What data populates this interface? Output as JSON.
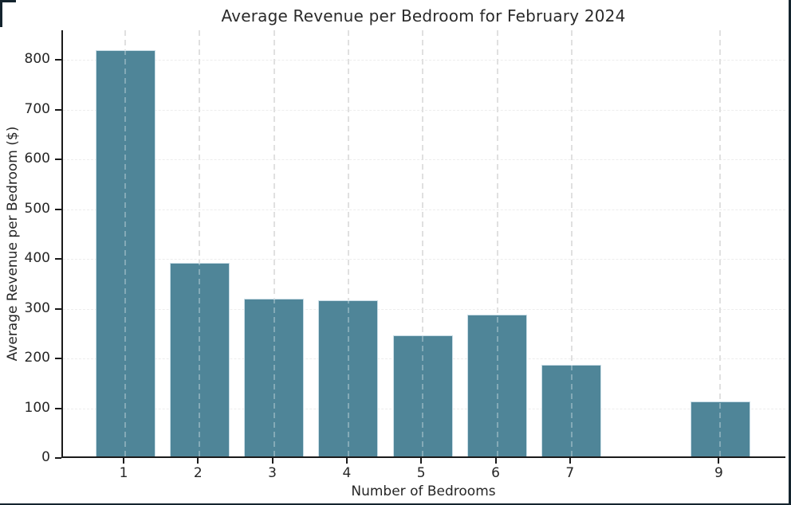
{
  "figure": {
    "background": "#ffffff",
    "border_color": "#14242e"
  },
  "chart_data": {
    "type": "bar",
    "title": "Average Revenue per Bedroom for February 2024",
    "xlabel": "Number of Bedrooms",
    "ylabel": "Average Revenue per Bedroom ($)",
    "categories": [
      "1",
      "2",
      "3",
      "4",
      "5",
      "6",
      "7",
      "9"
    ],
    "x_positions": [
      1,
      2,
      3,
      4,
      5,
      6,
      7,
      9
    ],
    "values": [
      817,
      389,
      317,
      314,
      244,
      285,
      184,
      110
    ],
    "yticks": [
      0,
      100,
      200,
      300,
      400,
      500,
      600,
      700,
      800
    ],
    "ylim": [
      0,
      860
    ],
    "xlim": [
      0.16,
      9.9
    ],
    "bar_color": "#4f8598",
    "bar_edge_color": "#c9dde6",
    "grid": {
      "vertical": "dashed at each x tick",
      "horizontal": "faint dashed at each y tick",
      "legend_position": "none"
    },
    "axis_color": "#1a1a1a",
    "text_color": "#262626"
  }
}
